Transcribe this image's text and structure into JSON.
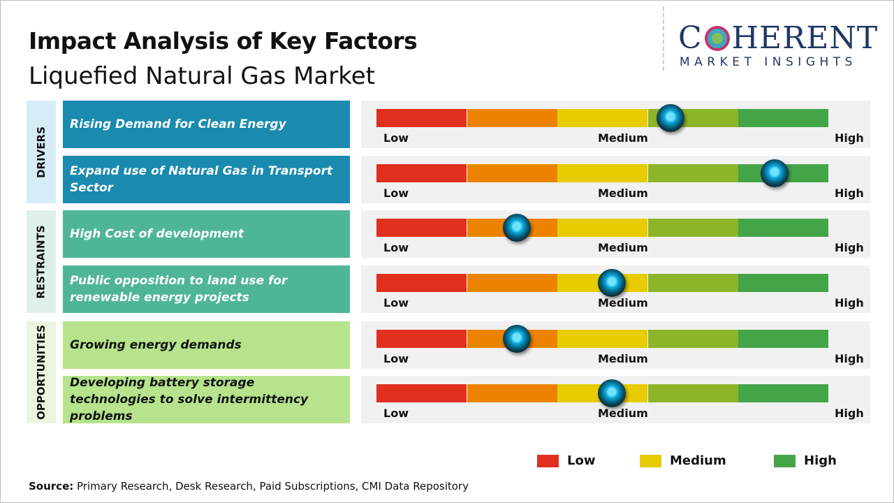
{
  "header": {
    "title": "Impact Analysis of Key Factors",
    "subtitle": "Liquefied Natural Gas Market"
  },
  "logo": {
    "top": "COHERENT",
    "bottom": "MARKET INSIGHTS"
  },
  "chart_data": {
    "type": "gauge",
    "scale_labels": [
      "Low",
      "Medium",
      "High"
    ],
    "segment_colors": [
      "#e0301e",
      "#ec8300",
      "#e6cc00",
      "#8db52a",
      "#43a548"
    ],
    "categories": [
      {
        "name": "DRIVERS",
        "band": "#d6edf7",
        "box": "#1a8aaf",
        "text": "#ffffff",
        "factors": [
          {
            "label": "Rising Demand for Clean Energy",
            "impact": 0.65
          },
          {
            "label": "Expand use of Natural Gas in Transport Sector",
            "impact": 0.88
          }
        ]
      },
      {
        "name": "RESTRAINTS",
        "band": "#dff0ec",
        "box": "#4fb598",
        "text": "#ffffff",
        "factors": [
          {
            "label": "High Cost of development",
            "impact": 0.31
          },
          {
            "label": "Public opposition to land use for renewable energy projects",
            "impact": 0.52
          }
        ]
      },
      {
        "name": "OPPORTUNITIES",
        "band": "#eaf6e0",
        "box": "#b6e38c",
        "text": "#111111",
        "factors": [
          {
            "label": "Growing energy demands",
            "impact": 0.31
          },
          {
            "label": "Developing battery storage technologies to solve intermittency problems",
            "impact": 0.52
          }
        ]
      }
    ],
    "legend": [
      {
        "label": "Low",
        "color": "#e0301e"
      },
      {
        "label": "Medium",
        "color": "#e6cc00"
      },
      {
        "label": "High",
        "color": "#43a548"
      }
    ]
  },
  "footer": {
    "source_label": "Source:",
    "source_text": " Primary Research, Desk Research, Paid Subscriptions, CMI Data Repository"
  }
}
